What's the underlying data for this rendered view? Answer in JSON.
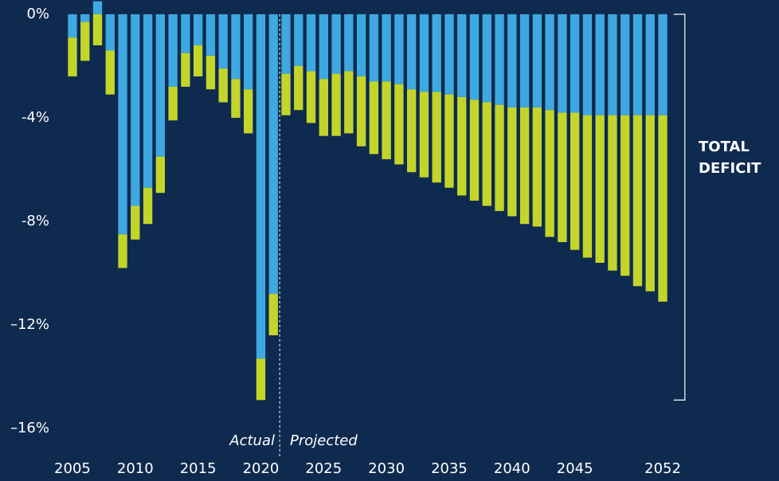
{
  "chart_data": {
    "type": "bar",
    "stacked": true,
    "x": [
      2005,
      2006,
      2007,
      2008,
      2009,
      2010,
      2011,
      2012,
      2013,
      2014,
      2015,
      2016,
      2017,
      2018,
      2019,
      2020,
      2021,
      2022,
      2023,
      2024,
      2025,
      2026,
      2027,
      2028,
      2029,
      2030,
      2031,
      2032,
      2033,
      2034,
      2035,
      2036,
      2037,
      2038,
      2039,
      2040,
      2041,
      2042,
      2043,
      2044,
      2045,
      2046,
      2047,
      2048,
      2049,
      2050,
      2051,
      2052
    ],
    "series": [
      {
        "color": "#3ea8e0",
        "values": [
          -0.9,
          -0.3,
          0.5,
          -1.4,
          -8.5,
          -7.4,
          -6.7,
          -5.5,
          -2.8,
          -1.5,
          -1.2,
          -1.6,
          -2.1,
          -2.5,
          -2.9,
          -13.3,
          -10.8,
          -2.3,
          -2.0,
          -2.2,
          -2.5,
          -2.3,
          -2.2,
          -2.4,
          -2.6,
          -2.6,
          -2.7,
          -2.9,
          -3.0,
          -3.0,
          -3.1,
          -3.2,
          -3.3,
          -3.4,
          -3.5,
          -3.6,
          -3.6,
          -3.6,
          -3.7,
          -3.8,
          -3.8,
          -3.9,
          -3.9,
          -3.9,
          -3.9,
          -3.9,
          -3.9,
          -3.9
        ]
      },
      {
        "color": "#c3d52a",
        "values": [
          -1.5,
          -1.5,
          -1.2,
          -1.7,
          -1.3,
          -1.3,
          -1.4,
          -1.4,
          -1.3,
          -1.3,
          -1.2,
          -1.3,
          -1.3,
          -1.5,
          -1.7,
          -1.6,
          -1.6,
          -1.6,
          -1.7,
          -2.0,
          -2.2,
          -2.4,
          -2.4,
          -2.7,
          -2.8,
          -3.0,
          -3.1,
          -3.2,
          -3.3,
          -3.5,
          -3.6,
          -3.8,
          -3.9,
          -4.0,
          -4.1,
          -4.2,
          -4.5,
          -4.6,
          -4.9,
          -5.0,
          -5.3,
          -5.5,
          -5.7,
          -6.0,
          -6.2,
          -6.6,
          -6.8,
          -7.2
        ]
      }
    ],
    "xlim": [
      2004,
      2053
    ],
    "xticks": [
      2005,
      2010,
      2015,
      2020,
      2025,
      2030,
      2035,
      2040,
      2045,
      2052
    ],
    "ylim": [
      -16.55,
      0.55
    ],
    "yticks": [
      {
        "value": 0,
        "label": "0%"
      },
      {
        "value": -4,
        "label": "-4%"
      },
      {
        "value": -8,
        "label": "-8%"
      },
      {
        "value": -12,
        "label": "–12%"
      },
      {
        "value": -16,
        "label": "–16%"
      }
    ],
    "annotations": {
      "actual": "Actual",
      "projected": "Projected",
      "bracket_label": [
        "TOTAL",
        "DEFICIT"
      ]
    }
  }
}
